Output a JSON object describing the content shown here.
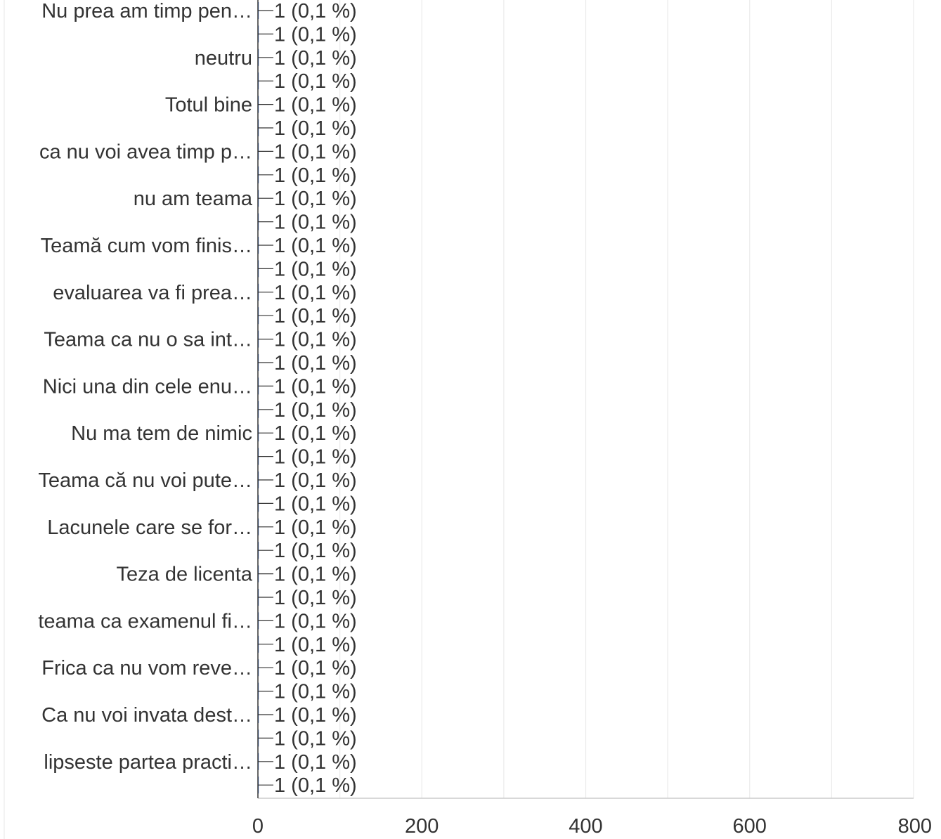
{
  "chart_data": {
    "type": "bar",
    "orientation": "horizontal",
    "title": "",
    "xlabel": "",
    "ylabel": "",
    "xlim": [
      0,
      800
    ],
    "x_ticks": [
      "0",
      "200",
      "400",
      "600",
      "800"
    ],
    "grid": "vertical gridlines every 100",
    "categories": [
      "Nu prea am timp pen…",
      "",
      "neutru",
      "",
      "Totul bine",
      "",
      "ca nu voi avea timp p…",
      "",
      "nu am teama",
      "",
      "Teamă cum vom finis…",
      "",
      "evaluarea va fi prea…",
      "",
      "Teama ca nu o sa int…",
      "",
      "Nici una din cele enu…",
      "",
      "Nu ma tem de nimic",
      "",
      "Teama că nu voi pute…",
      "",
      "Lacunele care se for…",
      "",
      "Teza de licenta",
      "",
      "teama ca examenul fi…",
      "",
      "Frica ca nu vom reve…",
      "",
      "Ca nu voi invata dest…",
      "",
      "lipseste partea practi…",
      ""
    ],
    "values": [
      1,
      1,
      1,
      1,
      1,
      1,
      1,
      1,
      1,
      1,
      1,
      1,
      1,
      1,
      1,
      1,
      1,
      1,
      1,
      1,
      1,
      1,
      1,
      1,
      1,
      1,
      1,
      1,
      1,
      1,
      1,
      1,
      1,
      1
    ],
    "data_labels": [
      "1 (0,1 %)",
      "1 (0,1 %)",
      "1 (0,1 %)",
      "1 (0,1 %)",
      "1 (0,1 %)",
      "1 (0,1 %)",
      "1 (0,1 %)",
      "1 (0,1 %)",
      "1 (0,1 %)",
      "1 (0,1 %)",
      "1 (0,1 %)",
      "1 (0,1 %)",
      "1 (0,1 %)",
      "1 (0,1 %)",
      "1 (0,1 %)",
      "1 (0,1 %)",
      "1 (0,1 %)",
      "1 (0,1 %)",
      "1 (0,1 %)",
      "1 (0,1 %)",
      "1 (0,1 %)",
      "1 (0,1 %)",
      "1 (0,1 %)",
      "1 (0,1 %)",
      "1 (0,1 %)",
      "1 (0,1 %)",
      "1 (0,1 %)",
      "1 (0,1 %)",
      "1 (0,1 %)",
      "1 (0,1 %)",
      "1 (0,1 %)",
      "1 (0,1 %)",
      "1 (0,1 %)",
      "1 (0,1 %)"
    ],
    "colors": {
      "axis": "#333333",
      "grid": "#ebebeb",
      "text": "#333333",
      "bar": "#3366cc"
    }
  }
}
